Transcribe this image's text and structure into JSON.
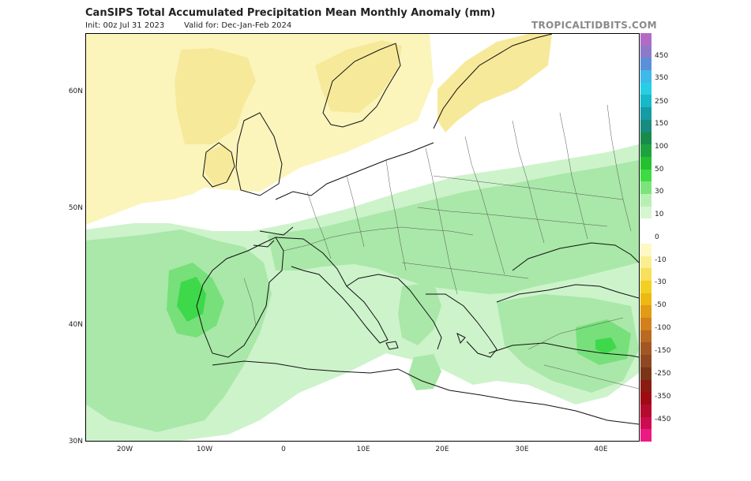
{
  "header": {
    "title": "CanSIPS Total Accumulated Precipitation Mean Monthly Anomaly (mm)",
    "init": "Init: 00z Jul 31 2023",
    "valid": "Valid for: Dec-Jan-Feb 2024",
    "brand": "TROPICALTIDBITS.COM"
  },
  "map": {
    "lat_labels": [
      "60N",
      "50N",
      "40N",
      "30N"
    ],
    "lon_labels": [
      "20W",
      "10W",
      "0",
      "10E",
      "20E",
      "30E",
      "40E"
    ],
    "palette": {
      "dry_light": "#fbf5bc",
      "dry_mid": "#f7e99a",
      "wet_light": "#cdf3cb",
      "wet_mid": "#a9e8a8",
      "wet_strong": "#77e07a",
      "wet_core": "#3ed84b",
      "land_outline": "#111111",
      "borders": "#555555"
    }
  },
  "colorbar": {
    "labels": [
      "450",
      "350",
      "250",
      "150",
      "100",
      "50",
      "30",
      "10",
      "0",
      "-10",
      "-30",
      "-50",
      "-100",
      "-150",
      "-250",
      "-350",
      "-450"
    ],
    "colors": [
      "#b26bc4",
      "#8e79c9",
      "#5b8fd6",
      "#3db9ea",
      "#27cfe4",
      "#16b9c7",
      "#159aa6",
      "#168b7e",
      "#178a4c",
      "#1ca33f",
      "#25c02f",
      "#3edb43",
      "#7be57b",
      "#b8f0b3",
      "#d5f6cf",
      "#ffffff",
      "#ffffff",
      "#fdf8c4",
      "#fbee92",
      "#f7e05a",
      "#f3cf22",
      "#edb911",
      "#e39b15",
      "#d1801b",
      "#b96a20",
      "#a25722",
      "#8e4822",
      "#7b3516",
      "#8a1b12",
      "#9e0b13",
      "#b40b2d",
      "#cc0b50",
      "#ea1a82"
    ]
  }
}
